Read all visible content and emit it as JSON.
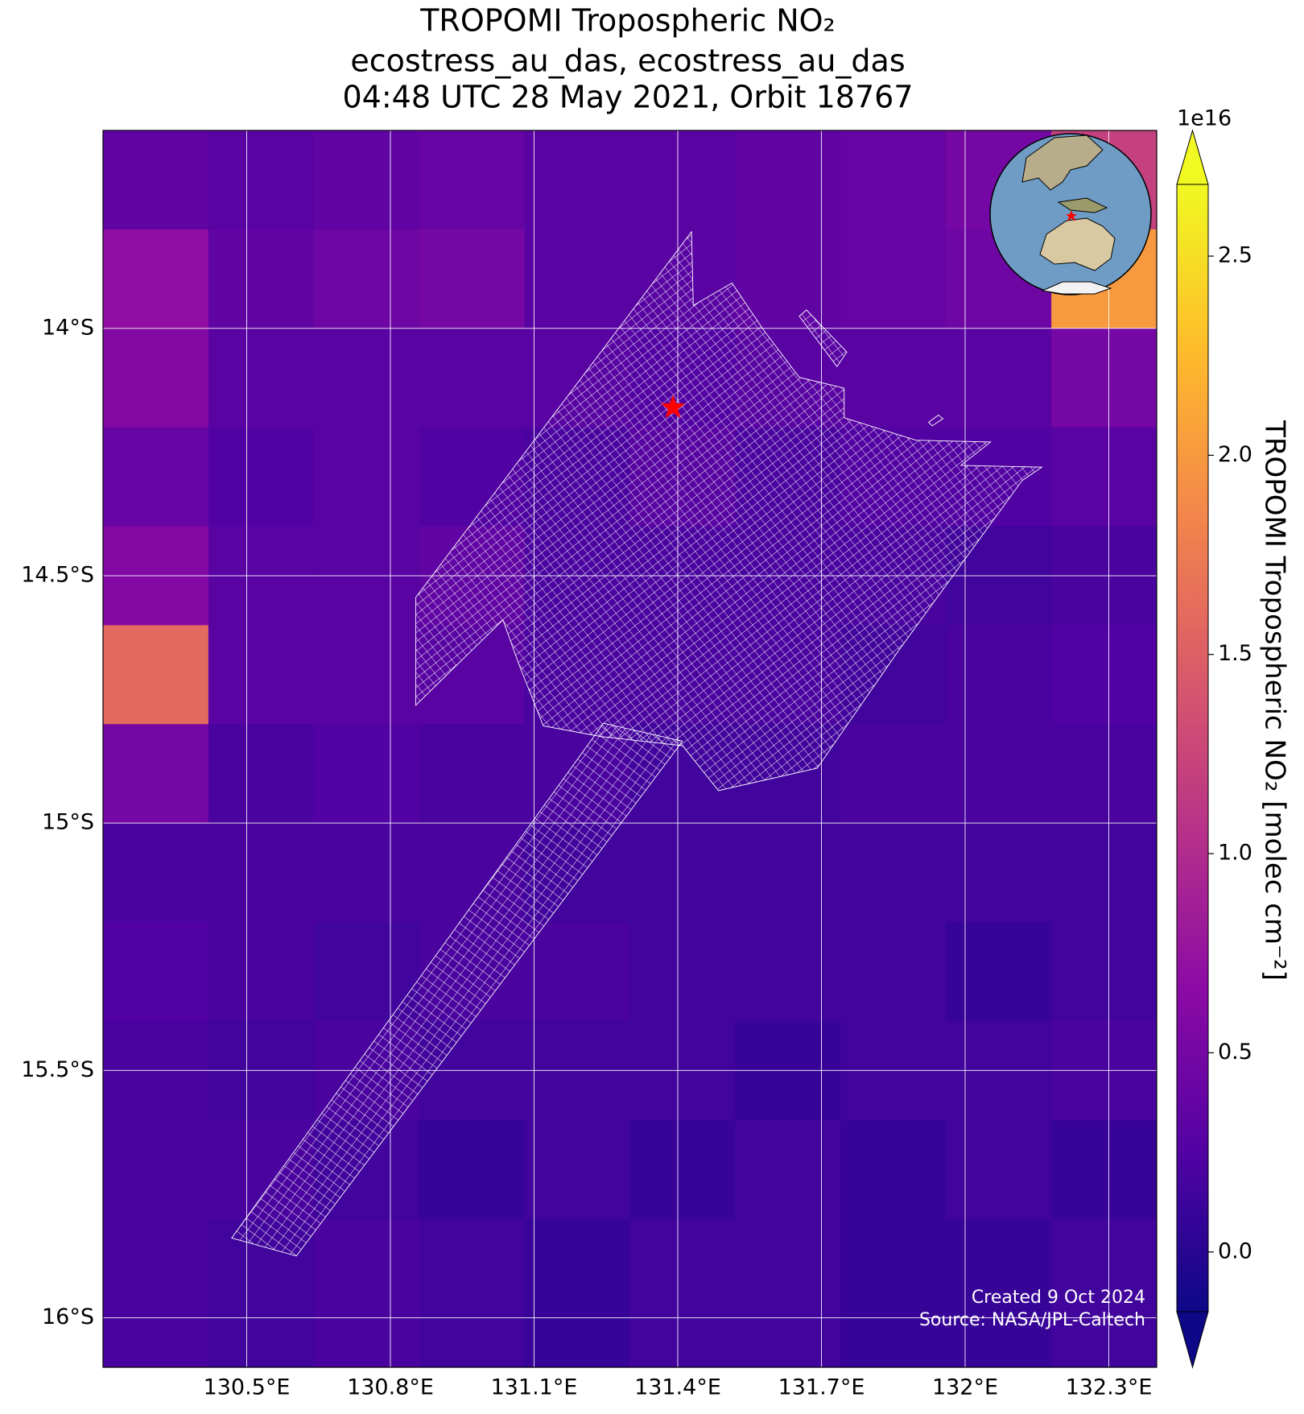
{
  "chart_data": {
    "type": "heatmap",
    "title_lines": [
      "TROPOMI Tropospheric NO₂",
      "ecostress_au_das, ecostress_au_das",
      "04:48 UTC 28 May 2021, Orbit 18767"
    ],
    "xlim": [
      130.2,
      132.4
    ],
    "ylim": [
      -16.1,
      -13.6
    ],
    "xticks": [
      {
        "value": 130.5,
        "label": "130.5°E"
      },
      {
        "value": 130.8,
        "label": "130.8°E"
      },
      {
        "value": 131.1,
        "label": "131.1°E"
      },
      {
        "value": 131.4,
        "label": "131.4°E"
      },
      {
        "value": 131.7,
        "label": "131.7°E"
      },
      {
        "value": 132,
        "label": "132°E"
      },
      {
        "value": 132.3,
        "label": "132.3°E"
      }
    ],
    "yticks": [
      {
        "value": -14,
        "label": "14°S"
      },
      {
        "value": -14.5,
        "label": "14.5°S"
      },
      {
        "value": -15,
        "label": "15°S"
      },
      {
        "value": -15.5,
        "label": "15.5°S"
      },
      {
        "value": -16,
        "label": "16°S"
      }
    ],
    "grid": true,
    "x_edges": [
      130.2,
      130.42,
      130.64,
      130.86,
      131.08,
      131.3,
      131.52,
      131.74,
      131.96,
      132.18,
      132.4
    ],
    "y_edges": [
      -13.6,
      -13.8,
      -14.0,
      -14.2,
      -14.4,
      -14.6,
      -14.8,
      -15.0,
      -15.2,
      -15.4,
      -15.6,
      -15.8,
      -16.1
    ],
    "z": [
      [
        0.35,
        0.3,
        0.35,
        0.4,
        0.3,
        0.3,
        0.35,
        0.4,
        0.5,
        1.2
      ],
      [
        0.7,
        0.35,
        0.45,
        0.5,
        0.3,
        0.3,
        0.35,
        0.4,
        0.45,
        2.0
      ],
      [
        0.6,
        0.3,
        0.3,
        0.3,
        0.3,
        0.25,
        0.3,
        0.3,
        0.3,
        0.5
      ],
      [
        0.4,
        0.25,
        0.3,
        0.25,
        0.2,
        0.3,
        0.2,
        0.25,
        0.25,
        0.3
      ],
      [
        0.6,
        0.3,
        0.3,
        0.35,
        0.2,
        0.2,
        0.2,
        0.2,
        0.15,
        0.2
      ],
      [
        1.6,
        0.3,
        0.3,
        0.3,
        0.2,
        0.2,
        0.2,
        0.15,
        0.2,
        0.25
      ],
      [
        0.5,
        0.2,
        0.25,
        0.2,
        0.2,
        0.15,
        0.15,
        0.2,
        0.2,
        0.2
      ],
      [
        0.2,
        0.2,
        0.2,
        0.2,
        0.15,
        0.15,
        0.15,
        0.15,
        0.15,
        0.15
      ],
      [
        0.25,
        0.2,
        0.15,
        0.2,
        0.2,
        0.15,
        0.15,
        0.15,
        0.1,
        0.15
      ],
      [
        0.2,
        0.15,
        0.2,
        0.15,
        0.15,
        0.15,
        0.1,
        0.15,
        0.15,
        0.2
      ],
      [
        0.2,
        0.2,
        0.15,
        0.1,
        0.15,
        0.1,
        0.15,
        0.1,
        0.15,
        0.1
      ],
      [
        0.2,
        0.15,
        0.2,
        0.15,
        0.1,
        0.15,
        0.15,
        0.1,
        0.1,
        0.15
      ]
    ],
    "colormap": [
      "#0d0887",
      "#5302a3",
      "#8b0aa5",
      "#b83289",
      "#db5c68",
      "#f48849",
      "#febd2a",
      "#f0f921"
    ],
    "clim": [
      -0.15,
      2.68
    ],
    "colorbar_ticks": [
      {
        "value": 0,
        "label": "0.0"
      },
      0.5,
      {
        "value": 1,
        "label": "1.0"
      },
      1.5,
      {
        "value": 2,
        "label": "2.0"
      },
      2.5
    ],
    "colorbar_exponent": "1e16",
    "colorbar_label": "TROPOMI Tropospheric NO₂ [molec cm⁻²]",
    "marker": {
      "lon": 131.39,
      "lat": -14.16,
      "color": "#ff0000"
    },
    "footer": [
      "Created 9 Oct 2024",
      "Source: NASA/JPL-Caltech"
    ]
  }
}
